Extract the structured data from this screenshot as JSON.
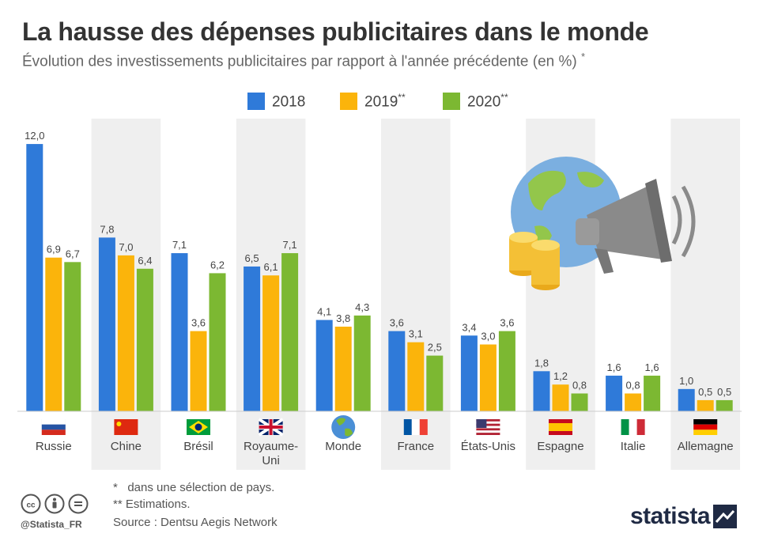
{
  "header": {
    "title": "La hausse des dépenses publicitaires dans le monde",
    "subtitle": "Évolution des investissements publicitaires par rapport à l'année précédente (en %)",
    "subtitle_mark": "*"
  },
  "legend": [
    {
      "label": "2018",
      "sup": "",
      "color": "#2f7ad9"
    },
    {
      "label": "2019",
      "sup": "**",
      "color": "#fbb40b"
    },
    {
      "label": "2020",
      "sup": "**",
      "color": "#7cb832"
    }
  ],
  "chart_data": {
    "type": "bar",
    "categories": [
      "Russie",
      "Chine",
      "Brésil",
      "Royaume-Uni",
      "Monde",
      "France",
      "États-Unis",
      "Espagne",
      "Italie",
      "Allemagne"
    ],
    "category_lines": [
      [
        "Russie"
      ],
      [
        "Chine"
      ],
      [
        "Brésil"
      ],
      [
        "Royaume-",
        "Uni"
      ],
      [
        "Monde"
      ],
      [
        "France"
      ],
      [
        "États-Unis"
      ],
      [
        "Espagne"
      ],
      [
        "Italie"
      ],
      [
        "Allemagne"
      ]
    ],
    "flags": [
      "russia-flag-icon",
      "china-flag-icon",
      "brazil-flag-icon",
      "uk-flag-icon",
      "globe-icon",
      "france-flag-icon",
      "usa-flag-icon",
      "spain-flag-icon",
      "italy-flag-icon",
      "germany-flag-icon"
    ],
    "series": [
      {
        "name": "2018",
        "values": [
          12.0,
          7.8,
          7.1,
          6.5,
          4.1,
          3.6,
          3.4,
          1.8,
          1.6,
          1.0
        ]
      },
      {
        "name": "2019**",
        "values": [
          6.9,
          7.0,
          3.6,
          6.1,
          3.8,
          3.1,
          3.0,
          1.2,
          0.8,
          0.5
        ]
      },
      {
        "name": "2020**",
        "values": [
          6.7,
          6.4,
          6.2,
          7.1,
          4.3,
          2.5,
          3.6,
          0.8,
          1.6,
          0.5
        ]
      }
    ],
    "colors": [
      "#2f7ad9",
      "#fbb40b",
      "#7cb832"
    ],
    "ylim": [
      0,
      12.5
    ],
    "decimal_separator": ",",
    "grid": false,
    "legend_position": "top-center"
  },
  "footnotes": {
    "note1": "*   dans une sélection de pays.",
    "note2": "** Estimations."
  },
  "source": "Source : Dentsu Aegis Network",
  "credit": {
    "handle": "@Statista_FR",
    "brand": "statista"
  }
}
